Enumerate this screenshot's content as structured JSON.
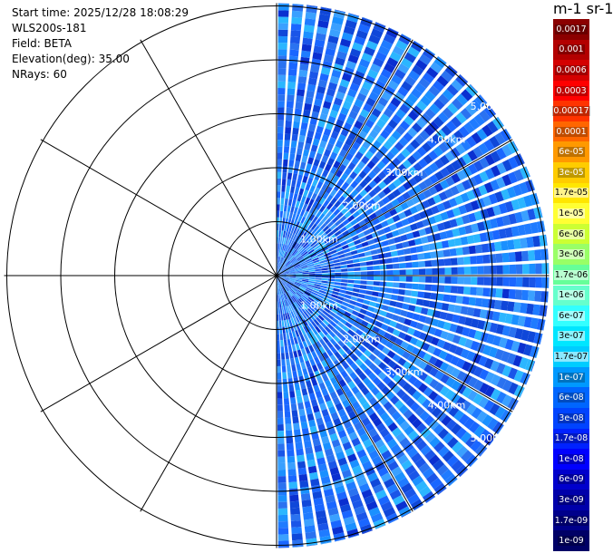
{
  "info": {
    "start_time": "Start time: 2025/12/28 18:08:29",
    "instrument": "WLS200s-181",
    "field": "Field: BETA",
    "elevation": "Elevation(deg): 35.00",
    "nrays": "NRays: 60"
  },
  "colorbar": {
    "title": "m-1 sr-1",
    "labels": [
      "0.0017",
      "0.001",
      "0.0006",
      "0.0003",
      "0.00017",
      "0.0001",
      "6e-05",
      "3e-05",
      "1.7e-05",
      "1e-05",
      "6e-06",
      "3e-06",
      "1.7e-06",
      "1e-06",
      "6e-07",
      "3e-07",
      "1.7e-07",
      "1e-07",
      "6e-08",
      "3e-08",
      "1.7e-08",
      "1e-08",
      "6e-09",
      "3e-09",
      "1.7e-09",
      "1e-09"
    ],
    "colors": [
      "#8b0000",
      "#b30000",
      "#d40000",
      "#ff0000",
      "#ff3300",
      "#ff6600",
      "#ff9900",
      "#ffcc00",
      "#ffe600",
      "#ffff33",
      "#ccff33",
      "#99ff66",
      "#66ff99",
      "#66ffcc",
      "#33ffff",
      "#00e6ff",
      "#00ccff",
      "#0099ff",
      "#0066ff",
      "#0044ff",
      "#0022ff",
      "#0000ff",
      "#0000cc",
      "#0000aa",
      "#00008b",
      "#000066"
    ]
  },
  "chart_data": {
    "type": "heatmap",
    "projection": "polar PPI",
    "field": "BETA",
    "elevation_deg": 35.0,
    "n_rays": 60,
    "start_time": "2025/12/28 18:08:29",
    "range_rings_km": [
      1.0,
      2.0,
      3.0,
      4.0,
      5.0
    ],
    "ring_labels_upper": [
      "1.00km",
      "2.00km",
      "3.00km",
      "4.00km",
      "5.00km"
    ],
    "ring_labels_lower": [
      "1.00km",
      "2.00km",
      "3.00km",
      "4.00km",
      "5.00km"
    ],
    "azimuth_spokes_deg": [
      0,
      30,
      60,
      90,
      120,
      150,
      180,
      210,
      240,
      270,
      300,
      330
    ],
    "azimuth_coverage_deg": [
      0,
      180
    ],
    "dominant_value_range": [
      1e-08,
      1e-07
    ],
    "scale": "log"
  }
}
